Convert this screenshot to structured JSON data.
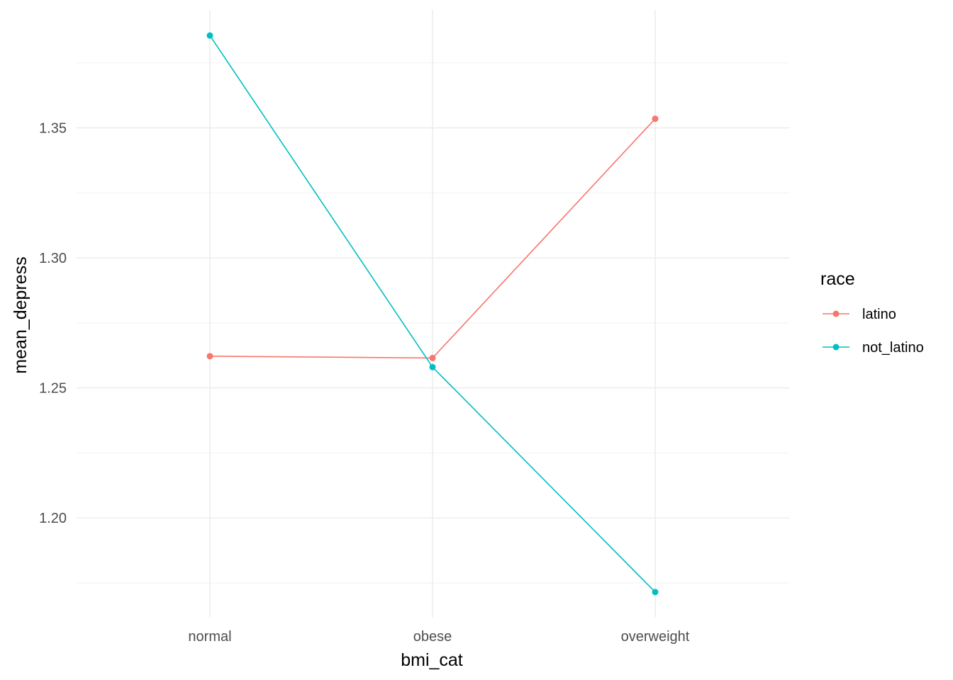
{
  "chart_data": {
    "type": "line",
    "title": "",
    "xlabel": "bmi_cat",
    "ylabel": "mean_depress",
    "categories": [
      "normal",
      "obese",
      "overweight"
    ],
    "ylim": [
      1.172,
      1.385
    ],
    "yticks": [
      1.2,
      1.25,
      1.3,
      1.35
    ],
    "ytick_labels": [
      "1.20",
      "1.25",
      "1.30",
      "1.35"
    ],
    "grid": true,
    "legend": {
      "title": "race",
      "placement": "right"
    },
    "series": [
      {
        "name": "latino",
        "color": "#F8766D",
        "values": [
          1.2622,
          1.2615,
          1.3535
        ]
      },
      {
        "name": "not_latino",
        "color": "#00BFC4",
        "values": [
          1.3855,
          1.258,
          1.1715
        ]
      }
    ]
  }
}
